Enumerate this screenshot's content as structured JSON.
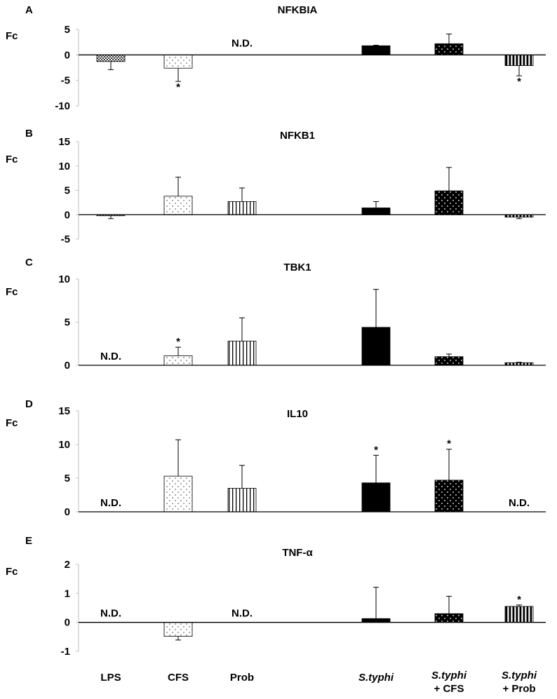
{
  "categories": [
    {
      "lines": [
        "LPS"
      ],
      "italic_first": false
    },
    {
      "lines": [
        "CFS"
      ],
      "italic_first": false
    },
    {
      "lines": [
        "Prob"
      ],
      "italic_first": false
    },
    {
      "lines": [
        "S.typhi"
      ],
      "italic_first": true
    },
    {
      "lines": [
        "S.typhi",
        "+ CFS"
      ],
      "italic_first": true
    },
    {
      "lines": [
        "S.typhi",
        "+ Prob"
      ],
      "italic_first": true
    }
  ],
  "ylabel": "Fc",
  "patterns": [
    "checker",
    "dots-light",
    "vstripes",
    "solid",
    "dots-dark",
    "vstripes-dark"
  ],
  "chart_data": [
    {
      "type": "bar",
      "letter": "A",
      "title": "NFKBIA",
      "ylabel": "Fc",
      "ylim": [
        -10,
        5
      ],
      "yticks": [
        5,
        0,
        -5,
        -10
      ],
      "values": [
        -1.3,
        -2.6,
        null,
        1.8,
        2.2,
        -2.1
      ],
      "errors": [
        1.6,
        2.6,
        null,
        0.1,
        1.9,
        2.0
      ],
      "nd": [
        false,
        false,
        true,
        false,
        false,
        false
      ],
      "significant": [
        false,
        true,
        false,
        false,
        false,
        true
      ]
    },
    {
      "type": "bar",
      "letter": "B",
      "title": "NFKB1",
      "ylabel": "Fc",
      "ylim": [
        -5,
        15
      ],
      "yticks": [
        15,
        10,
        5,
        0,
        -5
      ],
      "values": [
        -0.2,
        3.8,
        2.7,
        1.4,
        4.9,
        -0.5
      ],
      "errors": [
        0.6,
        3.9,
        2.8,
        1.3,
        4.8,
        0.3
      ],
      "nd": [
        false,
        false,
        false,
        false,
        false,
        false
      ],
      "significant": [
        false,
        false,
        false,
        false,
        false,
        false
      ]
    },
    {
      "type": "bar",
      "letter": "C",
      "title": "TBK1",
      "ylabel": "Fc",
      "ylim": [
        0,
        10
      ],
      "yticks": [
        10,
        5,
        0
      ],
      "values": [
        null,
        1.1,
        2.8,
        4.4,
        1.0,
        0.3
      ],
      "errors": [
        null,
        1.0,
        2.7,
        4.4,
        0.3,
        0.05
      ],
      "nd": [
        true,
        false,
        false,
        false,
        false,
        false
      ],
      "significant": [
        false,
        true,
        false,
        false,
        false,
        false
      ]
    },
    {
      "type": "bar",
      "letter": "D",
      "title": "IL10",
      "ylabel": "Fc",
      "ylim": [
        0,
        15
      ],
      "yticks": [
        15,
        10,
        5,
        0
      ],
      "values": [
        null,
        5.3,
        3.5,
        4.3,
        4.7,
        null
      ],
      "errors": [
        null,
        5.4,
        3.4,
        4.1,
        4.6,
        null
      ],
      "nd": [
        true,
        false,
        false,
        false,
        false,
        true
      ],
      "significant": [
        false,
        false,
        false,
        true,
        true,
        false
      ]
    },
    {
      "type": "bar",
      "letter": "E",
      "title": "TNF-α",
      "ylabel": "Fc",
      "ylim": [
        -1,
        2
      ],
      "yticks": [
        2,
        1,
        0,
        -1
      ],
      "values": [
        null,
        -0.48,
        null,
        0.13,
        0.3,
        0.55
      ],
      "errors": [
        null,
        0.13,
        null,
        1.08,
        0.6,
        0.05
      ],
      "nd": [
        true,
        false,
        true,
        false,
        false,
        false
      ],
      "significant": [
        false,
        false,
        false,
        false,
        false,
        true
      ]
    }
  ],
  "labels": {
    "nd": "N.D.",
    "star": "*"
  }
}
